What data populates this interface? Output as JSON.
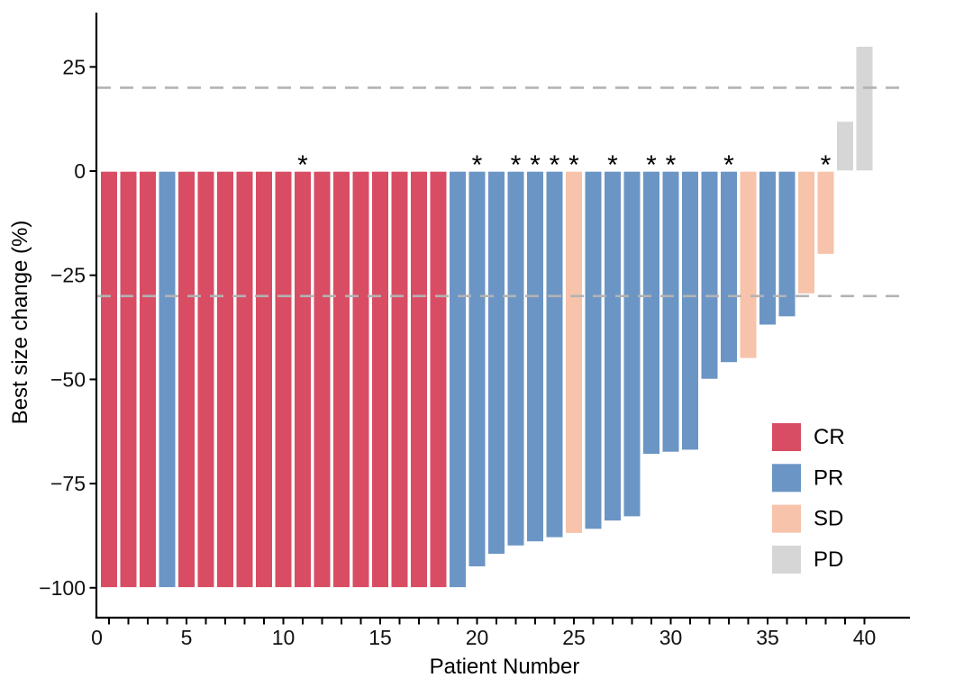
{
  "chart_data": {
    "type": "bar",
    "variant": "waterfall",
    "title": "",
    "xlabel": "Patient Number",
    "ylabel": "Best size change (%)",
    "x_ticks": [
      0,
      5,
      10,
      15,
      20,
      25,
      30,
      35,
      40
    ],
    "y_ticks": [
      25,
      0,
      -25,
      -50,
      -75,
      -100
    ],
    "xlim": [
      0,
      42.3
    ],
    "ylim": [
      -107,
      38
    ],
    "grid": false,
    "reference_lines": [
      20,
      -30
    ],
    "annotation_symbol": "*",
    "annotated_patients": [
      11,
      20,
      22,
      23,
      24,
      25,
      27,
      29,
      30,
      33,
      38
    ],
    "legend_position": "inside-right-bottom",
    "legend": [
      {
        "label": "CR",
        "color": "#d84d63"
      },
      {
        "label": "PR",
        "color": "#6b95c4"
      },
      {
        "label": "SD",
        "color": "#f7c3ab"
      },
      {
        "label": "PD",
        "color": "#d6d6d6"
      }
    ],
    "patients": [
      {
        "patient": 1,
        "value": -100,
        "response": "CR",
        "asterisk": false
      },
      {
        "patient": 2,
        "value": -100,
        "response": "CR",
        "asterisk": false
      },
      {
        "patient": 3,
        "value": -100,
        "response": "CR",
        "asterisk": false
      },
      {
        "patient": 4,
        "value": -100,
        "response": "PR",
        "asterisk": false
      },
      {
        "patient": 5,
        "value": -100,
        "response": "CR",
        "asterisk": false
      },
      {
        "patient": 6,
        "value": -100,
        "response": "CR",
        "asterisk": false
      },
      {
        "patient": 7,
        "value": -100,
        "response": "CR",
        "asterisk": false
      },
      {
        "patient": 8,
        "value": -100,
        "response": "CR",
        "asterisk": false
      },
      {
        "patient": 9,
        "value": -100,
        "response": "CR",
        "asterisk": false
      },
      {
        "patient": 10,
        "value": -100,
        "response": "CR",
        "asterisk": false
      },
      {
        "patient": 11,
        "value": -100,
        "response": "CR",
        "asterisk": true
      },
      {
        "patient": 12,
        "value": -100,
        "response": "CR",
        "asterisk": false
      },
      {
        "patient": 13,
        "value": -100,
        "response": "CR",
        "asterisk": false
      },
      {
        "patient": 14,
        "value": -100,
        "response": "CR",
        "asterisk": false
      },
      {
        "patient": 15,
        "value": -100,
        "response": "CR",
        "asterisk": false
      },
      {
        "patient": 16,
        "value": -100,
        "response": "CR",
        "asterisk": false
      },
      {
        "patient": 17,
        "value": -100,
        "response": "CR",
        "asterisk": false
      },
      {
        "patient": 18,
        "value": -100,
        "response": "CR",
        "asterisk": false
      },
      {
        "patient": 19,
        "value": -100,
        "response": "PR",
        "asterisk": false
      },
      {
        "patient": 20,
        "value": -95,
        "response": "PR",
        "asterisk": true
      },
      {
        "patient": 21,
        "value": -92,
        "response": "PR",
        "asterisk": false
      },
      {
        "patient": 22,
        "value": -90,
        "response": "PR",
        "asterisk": true
      },
      {
        "patient": 23,
        "value": -89,
        "response": "PR",
        "asterisk": true
      },
      {
        "patient": 24,
        "value": -88,
        "response": "PR",
        "asterisk": true
      },
      {
        "patient": 25,
        "value": -87,
        "response": "SD",
        "asterisk": true
      },
      {
        "patient": 26,
        "value": -86,
        "response": "PR",
        "asterisk": false
      },
      {
        "patient": 27,
        "value": -84,
        "response": "PR",
        "asterisk": true
      },
      {
        "patient": 28,
        "value": -83,
        "response": "PR",
        "asterisk": false
      },
      {
        "patient": 29,
        "value": -68,
        "response": "PR",
        "asterisk": true
      },
      {
        "patient": 30,
        "value": -67.5,
        "response": "PR",
        "asterisk": true
      },
      {
        "patient": 31,
        "value": -67,
        "response": "PR",
        "asterisk": false
      },
      {
        "patient": 32,
        "value": -50,
        "response": "PR",
        "asterisk": false
      },
      {
        "patient": 33,
        "value": -46,
        "response": "PR",
        "asterisk": true
      },
      {
        "patient": 34,
        "value": -45,
        "response": "SD",
        "asterisk": false
      },
      {
        "patient": 35,
        "value": -37,
        "response": "PR",
        "asterisk": false
      },
      {
        "patient": 36,
        "value": -35,
        "response": "PR",
        "asterisk": false
      },
      {
        "patient": 37,
        "value": -29.5,
        "response": "SD",
        "asterisk": false
      },
      {
        "patient": 38,
        "value": -20,
        "response": "SD",
        "asterisk": true
      },
      {
        "patient": 39,
        "value": 12,
        "response": "PD",
        "asterisk": false
      },
      {
        "patient": 40,
        "value": 30,
        "response": "PD",
        "asterisk": false
      }
    ]
  },
  "style_colors": {
    "axis": "#000000",
    "tick_label": "#111111",
    "reference_line": "#b3b3b3",
    "bar_border": "#ffffff",
    "background": "#ffffff"
  }
}
